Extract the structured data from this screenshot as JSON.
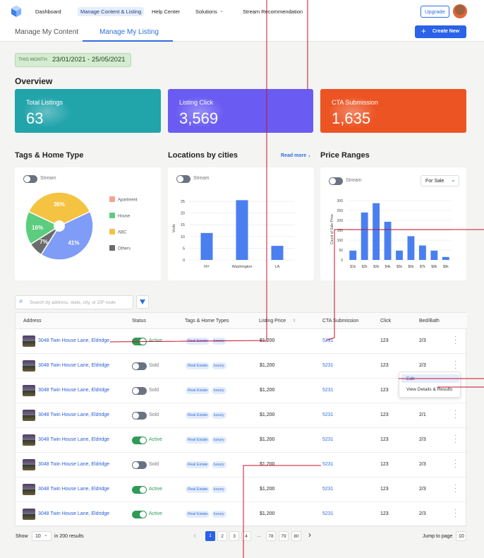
{
  "nav": {
    "items": [
      "Dashboard",
      "Manage Content & Listing",
      "Help Center",
      "Solutions",
      "Stream Recommendation"
    ],
    "upgrade": "Upgrade"
  },
  "tabs": {
    "items": [
      "Manage My Content",
      "Manage My Listing"
    ],
    "create": "Create New"
  },
  "period": {
    "label": "THIS MONTH:",
    "range": "23/01/2021 - 25/05/2021"
  },
  "overview": {
    "title": "Overview",
    "cards": [
      {
        "label": "Total Listings",
        "value": "63",
        "color": "#22a4ab"
      },
      {
        "label": "Listing Click",
        "value": "3,569",
        "color": "#6a5cf2"
      },
      {
        "label": "CTA Submission",
        "value": "1,635",
        "color": "#ec5423"
      }
    ]
  },
  "tags_chart": {
    "type": "pie",
    "title": "Tags & Home Type",
    "toggle": "Stream",
    "values": [
      36,
      41,
      7,
      16
    ],
    "value_labels": [
      "36%",
      "41%",
      "7%",
      "16%"
    ],
    "colors": [
      "#f5c342",
      "#7f9cf6",
      "#6b6b6b",
      "#5ccd7e"
    ],
    "legend": [
      {
        "name": "Apartment",
        "color": "#f4a492"
      },
      {
        "name": "House",
        "color": "#5ccd7e"
      },
      {
        "name": "ABC",
        "color": "#f5c342"
      },
      {
        "name": "Others",
        "color": "#6b6b6b"
      }
    ]
  },
  "location_chart": {
    "type": "bar",
    "title": "Locations by cities",
    "link": "Read more",
    "toggle": "Stream",
    "y_label": "Visits",
    "categories": [
      "NY",
      "Washington",
      "LA"
    ],
    "values": [
      11.5,
      25.5,
      6
    ],
    "color": "#4a7ff0",
    "ylim": [
      0,
      27
    ],
    "yticks": [
      0,
      5,
      10,
      15,
      20,
      25
    ],
    "grid": true
  },
  "price_chart": {
    "type": "bar",
    "title": "Price Ranges",
    "toggle": "Stream",
    "filter": "For Sale",
    "y_label": "Count of Sale Price",
    "categories": [
      "$1k",
      "$2k",
      "$3k",
      "$4k",
      "$5k",
      "$6k",
      "$7k",
      "$8k",
      "$9k"
    ],
    "values": [
      47,
      240,
      287,
      193,
      47,
      120,
      73,
      47,
      15
    ],
    "color": "#4a7ff0",
    "ylim": [
      0,
      310
    ],
    "yticks": [
      0,
      50,
      100,
      150,
      200,
      250,
      300
    ],
    "grid": true
  },
  "table": {
    "search": "Search by address, state, city, or ZIP code",
    "columns": [
      "Address",
      "Status",
      "Tags & Home Types",
      "Listing Price",
      "CTA Submission",
      "Click",
      "Bed/Bath"
    ],
    "rows": [
      {
        "address": "3048 Twin House Lane, Eldridge",
        "status": "Active",
        "toggle_on": true,
        "tags": [
          "Real Estate",
          "luxury"
        ],
        "price": "$1,200",
        "cta": "5231",
        "click": "123",
        "bed_bath": "2/3"
      },
      {
        "address": "3048 Twin House Lane, Eldridge",
        "status": "Sold",
        "toggle_on": false,
        "tags": [
          "Real Estate",
          "luxury"
        ],
        "price": "$1,200",
        "cta": "5231",
        "click": "123",
        "bed_bath": "2/3"
      },
      {
        "address": "3048 Twin House Lane, Eldridge",
        "status": "Sold",
        "toggle_on": false,
        "tags": [
          "Real Estate",
          "luxury"
        ],
        "price": "$1,200",
        "cta": "5231",
        "click": "123",
        "bed_bath": "2/3"
      },
      {
        "address": "3048 Twin House Lane, Eldridge",
        "status": "Sold",
        "toggle_on": false,
        "tags": [
          "Real Estate",
          "luxury"
        ],
        "price": "$1,200",
        "cta": "5231",
        "click": "123",
        "bed_bath": "2/1"
      },
      {
        "address": "3048 Twin House Lane, Eldridge",
        "status": "Active",
        "toggle_on": true,
        "tags": [
          "Real Estate",
          "luxury"
        ],
        "price": "$1,200",
        "cta": "5231",
        "click": "123",
        "bed_bath": "2/3"
      },
      {
        "address": "3048 Twin House Lane, Eldridge",
        "status": "Sold",
        "toggle_on": false,
        "tags": [
          "Real Estate",
          "luxury"
        ],
        "price": "$1,200",
        "cta": "5231",
        "click": "123",
        "bed_bath": "2/3"
      },
      {
        "address": "3048 Twin House Lane, Eldridge",
        "status": "Active",
        "toggle_on": true,
        "tags": [
          "Real Estate",
          "luxury"
        ],
        "price": "$1,200",
        "cta": "5231",
        "click": "123",
        "bed_bath": "2/3"
      },
      {
        "address": "3048 Twin House Lane, Eldridge",
        "status": "Active",
        "toggle_on": true,
        "tags": [
          "Real Estate",
          "luxury"
        ],
        "price": "$1,200",
        "cta": "5231",
        "click": "123",
        "bed_bath": "2/3"
      }
    ]
  },
  "menu": [
    "Edit",
    "View Details & Results"
  ],
  "pagination": {
    "show": "Show",
    "page_size": "10",
    "total": "in 200 results",
    "pages": [
      "1",
      "2",
      "3",
      "4",
      "...",
      "78",
      "79",
      "80"
    ],
    "jump": "Jump to page",
    "jump_value": "10"
  }
}
